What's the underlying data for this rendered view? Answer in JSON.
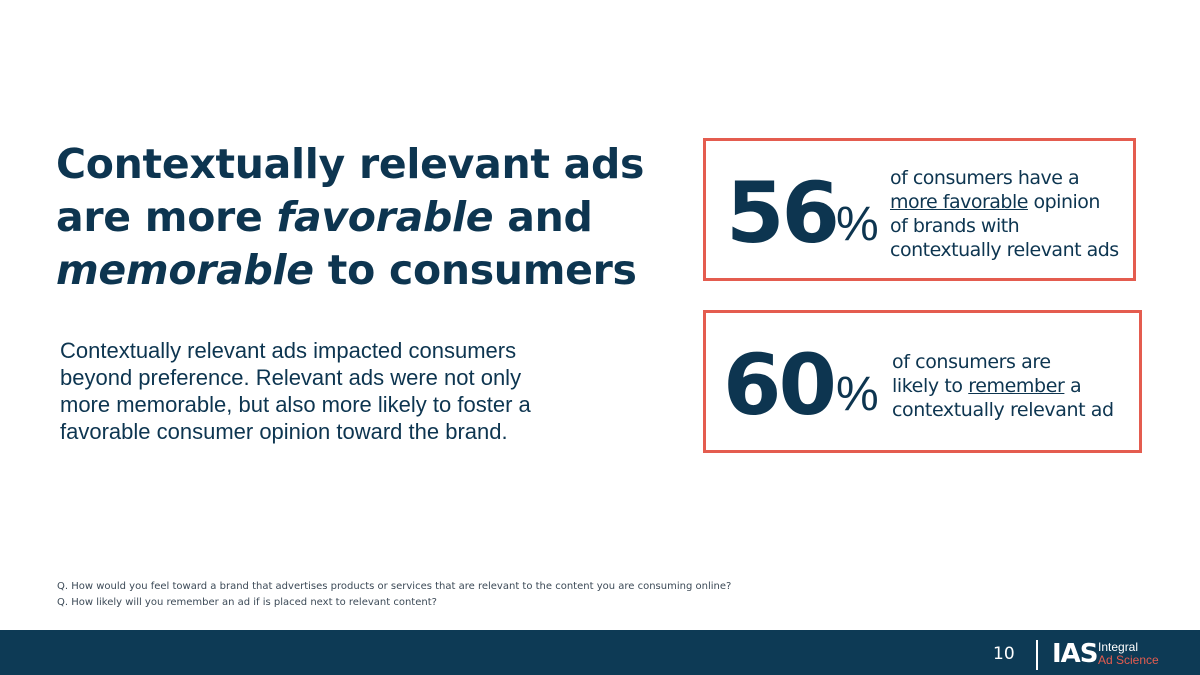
{
  "title": {
    "line1": "Contextually relevant ads",
    "line2_pre": "are more ",
    "line2_em": "favorable",
    "line2_post": " and",
    "line3_em": "memorable",
    "line3_post": " to consumers"
  },
  "body": {
    "line1": "Contextually relevant ads impacted consumers",
    "line2": "beyond preference. Relevant ads were not only",
    "line3": "more memorable, but also more likely to foster a",
    "line4": "favorable consumer opinion toward the brand."
  },
  "stats": [
    {
      "number": "56",
      "percent": "%",
      "line1": "of consumers have a",
      "line2_ul": "more favorable",
      "line2_post": " opinion",
      "line3": "of brands with",
      "line4": "contextually relevant ads"
    },
    {
      "number": "60",
      "percent": "%",
      "line1": "of consumers are",
      "line2_pre": "likely to ",
      "line2_ul": "remember",
      "line2_post": " a",
      "line3": "contextually relevant ad"
    }
  ],
  "footnotes": [
    "Q. How would you feel toward a brand that advertises products or services that are relevant to the content you are consuming online?",
    "Q. How likely will you remember an ad if is placed next to relevant content?"
  ],
  "footer": {
    "page_number": "10",
    "logo_mark": "IAS",
    "logo_line1": "Integral",
    "logo_line2": "Ad Science"
  },
  "colors": {
    "navy": "#0d3550",
    "accent_red": "#e45c4f",
    "footer_bg": "#0d3a55"
  }
}
